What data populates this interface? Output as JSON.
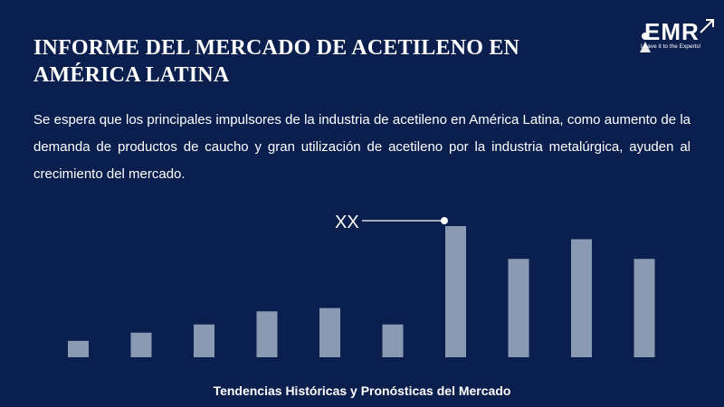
{
  "header": {
    "title": "INFORME DEL MERCADO DE ACETILENO EN AMÉRICA LATINA"
  },
  "logo": {
    "text": "EMR",
    "tagline": "Leave it to the Experts!",
    "icon": "person-arrow-icon"
  },
  "description": "Se espera que los principales impulsores de la industria de acetileno en América Latina, como aumento de la demanda de productos de caucho y gran utilización de acetileno por la industria metalúrgica, ayuden al crecimiento del mercado.",
  "chart_data": {
    "type": "bar",
    "values": [
      1,
      1.5,
      2,
      2.8,
      3,
      2,
      8,
      6,
      7.2,
      6
    ],
    "annotation": {
      "text": "XX",
      "bar_index": 6
    },
    "bar_color": "#8b9ab3",
    "background": "#0b1f4e",
    "grid": false
  },
  "footer": {
    "caption": "Tendencias Históricas y Pronósticas del Mercado"
  }
}
